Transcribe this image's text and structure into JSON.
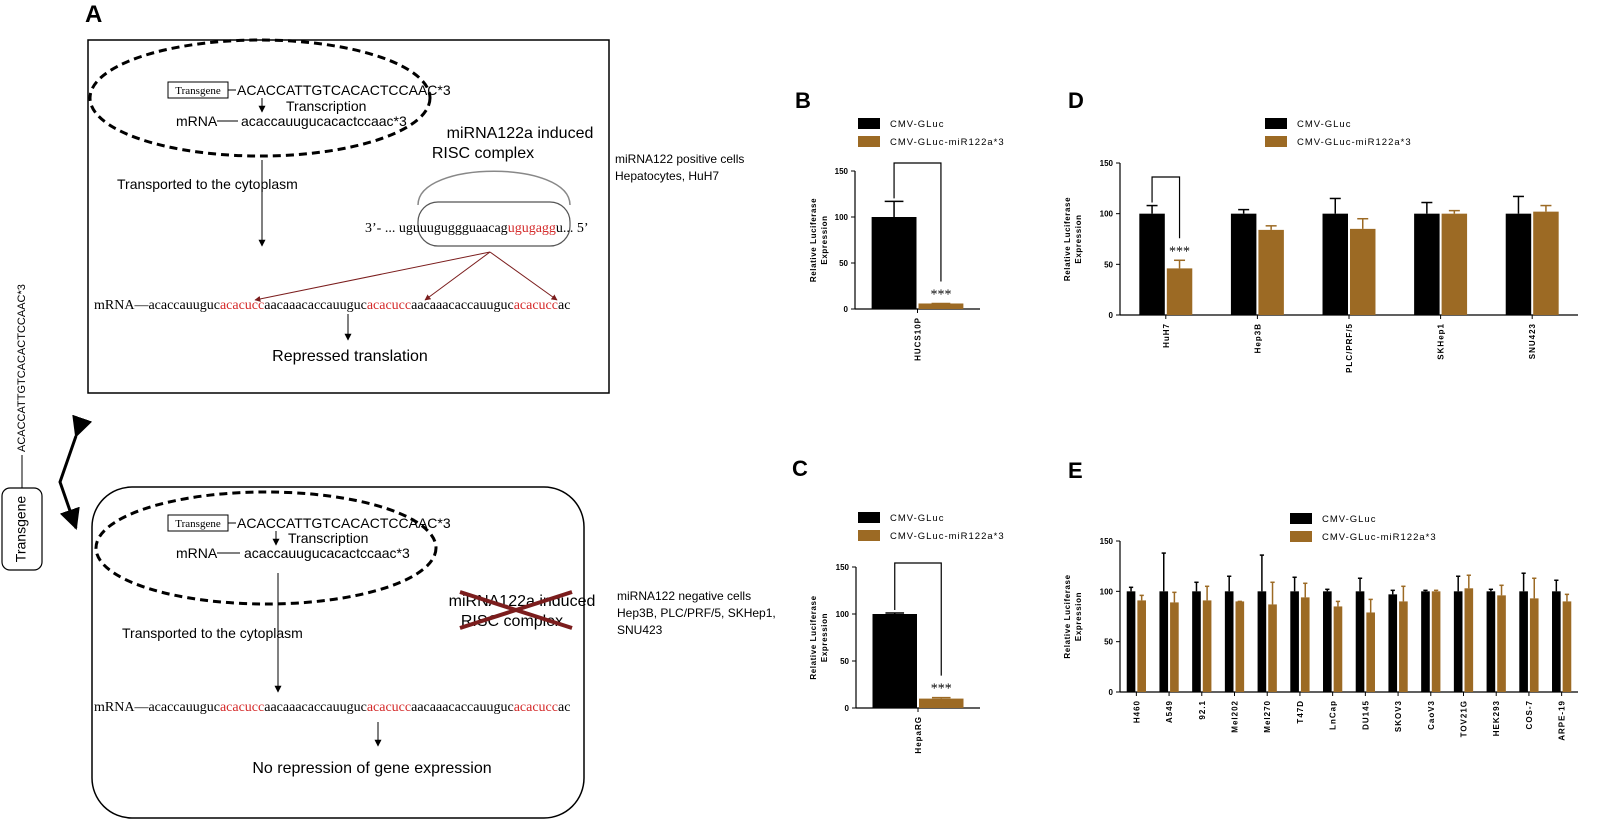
{
  "panel_a": {
    "label": "A",
    "positive": {
      "transgene": "Transgene",
      "dna": "ACACCATTGTCACACTCCAAC*3",
      "transcription": "Transcription",
      "mrna": "mRNA",
      "mrna_seq": "acaccauugucacactccaac*3",
      "transport": "Transported to the cytoplasm",
      "risc": [
        "miRNA122a induced",
        "RISC complex"
      ],
      "mirna_seq": [
        "3’- ... uguuuguggguaacag",
        "ugugagg",
        "u... 5’"
      ],
      "cells": [
        "miRNA122 positive cells",
        "Hepatocytes, HuH7"
      ],
      "target": [
        "mRNA—acaccauuguc",
        "acacucc",
        "aacaaacaccauuguc",
        "acacucc",
        "aacaaacaccauuguc",
        "acacucc",
        "ac"
      ],
      "outcome": "Repressed translation"
    },
    "negative": {
      "transgene": "Transgene",
      "dna": "ACACCATTGTCACACTCCAAC*3",
      "transcription": "Transcription",
      "mrna": "mRNA",
      "mrna_seq": "acaccauugucacactccaac*3",
      "transport": "Transported to the cytoplasm",
      "risc": [
        "miRNA122a induced",
        "RISC complex"
      ],
      "cells": [
        "miRNA122 negative cells",
        "Hep3B, PLC/PRF/5, SKHep1,",
        "SNU423"
      ],
      "target": [
        "mRNA—acaccauuguc",
        "acacucc",
        "aacaaacaccauuguc",
        "acacucc",
        "aacaaacaccauuguc",
        "acacucc",
        "ac"
      ],
      "outcome": "No repression of gene expression"
    }
  },
  "side": {
    "transgene": "Transgene",
    "dna": "ACACCATTGTCACACTCCAAC*3"
  },
  "chart_data": [
    {
      "type": "bar",
      "label": "B",
      "y_label": [
        "Relative Luciferase",
        "Expression"
      ],
      "categories": [
        "HUCS10P"
      ],
      "series": [
        {
          "name": "CMV-GLuc",
          "color": "#000000",
          "values": [
            100
          ],
          "errors": [
            17
          ]
        },
        {
          "name": "CMV-GLuc-miR122a*3",
          "color": "#9c6a24",
          "values": [
            6
          ],
          "errors": [
            0
          ]
        }
      ],
      "ylim": [
        0,
        150
      ],
      "yticks": [
        0,
        50,
        100,
        150
      ],
      "annotation": "***"
    },
    {
      "type": "bar",
      "label": "C",
      "y_label": [
        "Relative Luciferase",
        "Expression"
      ],
      "categories": [
        "HepaRG"
      ],
      "series": [
        {
          "name": "CMV-GLuc",
          "color": "#000000",
          "values": [
            100
          ],
          "errors": [
            1
          ]
        },
        {
          "name": "CMV-GLuc-miR122a*3",
          "color": "#9c6a24",
          "values": [
            10
          ],
          "errors": [
            1
          ]
        }
      ],
      "ylim": [
        0,
        150
      ],
      "yticks": [
        0,
        50,
        100,
        150
      ],
      "annotation": "***"
    },
    {
      "type": "bar",
      "label": "D",
      "y_label": [
        "Relative Luciferase",
        "Expression"
      ],
      "categories": [
        "HuH7",
        "Hep3B",
        "PLC/PRF/5",
        "SKHep1",
        "SNU423"
      ],
      "series": [
        {
          "name": "CMV-GLuc",
          "color": "#000000",
          "values": [
            100,
            100,
            100,
            100,
            100
          ],
          "errors": [
            8,
            4,
            15,
            11,
            17
          ]
        },
        {
          "name": "CMV-GLuc-miR122a*3",
          "color": "#9c6a24",
          "values": [
            46,
            84,
            85,
            100,
            102
          ],
          "errors": [
            8,
            4,
            10,
            3,
            6
          ]
        }
      ],
      "ylim": [
        0,
        150
      ],
      "yticks": [
        0,
        50,
        100,
        150
      ],
      "annotation": "***"
    },
    {
      "type": "bar",
      "label": "E",
      "y_label": [
        "Relative Luciferase",
        "Expression"
      ],
      "categories": [
        "H460",
        "A549",
        "92.1",
        "Mel202",
        "Mel270",
        "T47D",
        "LnCap",
        "DU145",
        "SKOV3",
        "CaoV3",
        "TOV21G",
        "HEK293",
        "COS-7",
        "ARPE-19"
      ],
      "series": [
        {
          "name": "CMV-GLuc",
          "color": "#000000",
          "values": [
            100,
            100,
            100,
            100,
            100,
            100,
            100,
            100,
            97,
            100,
            100,
            100,
            100,
            100
          ],
          "errors": [
            4,
            38,
            9,
            15,
            36,
            14,
            2,
            13,
            4,
            1,
            15,
            2,
            18,
            11
          ]
        },
        {
          "name": "CMV-GLuc-miR122a*3",
          "color": "#9c6a24",
          "values": [
            91,
            89,
            91,
            90,
            87,
            94,
            85,
            79,
            90,
            100,
            103,
            96,
            93,
            90
          ],
          "errors": [
            5,
            10,
            14,
            0,
            22,
            14,
            5,
            13,
            15,
            1,
            13,
            10,
            20,
            7
          ]
        }
      ],
      "ylim": [
        0,
        150
      ],
      "yticks": [
        0,
        50,
        100,
        150
      ]
    }
  ]
}
